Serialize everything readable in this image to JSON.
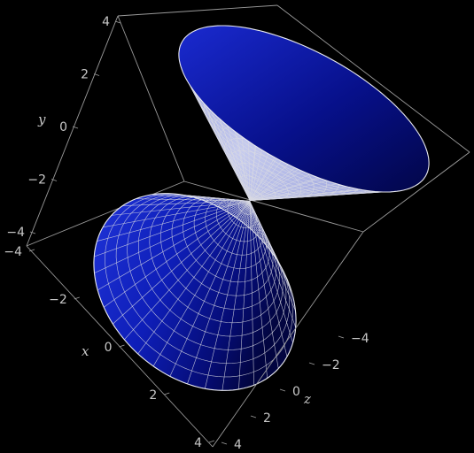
{
  "plot": {
    "surface": "double cone",
    "surface_color": "#0a18b4",
    "mesh_color": "#d9dbe3",
    "background": "#000000",
    "axes": {
      "y": {
        "label": "y",
        "ticks": [
          "4",
          "2",
          "0",
          "−2",
          "−4"
        ]
      },
      "x": {
        "label": "x",
        "ticks": [
          "−4",
          "−2",
          "0",
          "2",
          "4"
        ]
      },
      "z": {
        "label": "z",
        "ticks": [
          "−4",
          "−2",
          "0",
          "2",
          "4"
        ]
      }
    }
  }
}
